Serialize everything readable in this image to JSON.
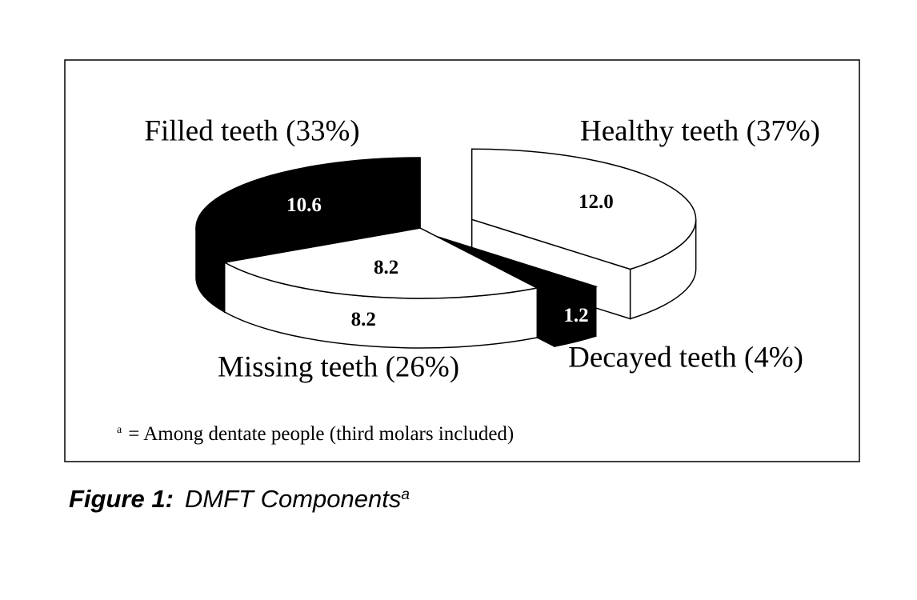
{
  "chart_data": {
    "type": "pie3d",
    "categories": [
      "Healthy teeth (37%)",
      "Decayed teeth (4%)",
      "Missing teeth (26%)",
      "Filled teeth (33%)"
    ],
    "values": [
      12.0,
      1.2,
      8.2,
      10.6
    ],
    "value_labels": [
      "12.0",
      "1.2",
      "8.2",
      "10.6"
    ],
    "colors": [
      "#ffffff",
      "#000000",
      "#ffffff",
      "#000000"
    ]
  },
  "footnote": {
    "marker": "a",
    "text": "= Among dentate people (third molars included)"
  },
  "caption": {
    "label": "Figure 1:",
    "text": "DMFT Components",
    "superscript": "a"
  }
}
